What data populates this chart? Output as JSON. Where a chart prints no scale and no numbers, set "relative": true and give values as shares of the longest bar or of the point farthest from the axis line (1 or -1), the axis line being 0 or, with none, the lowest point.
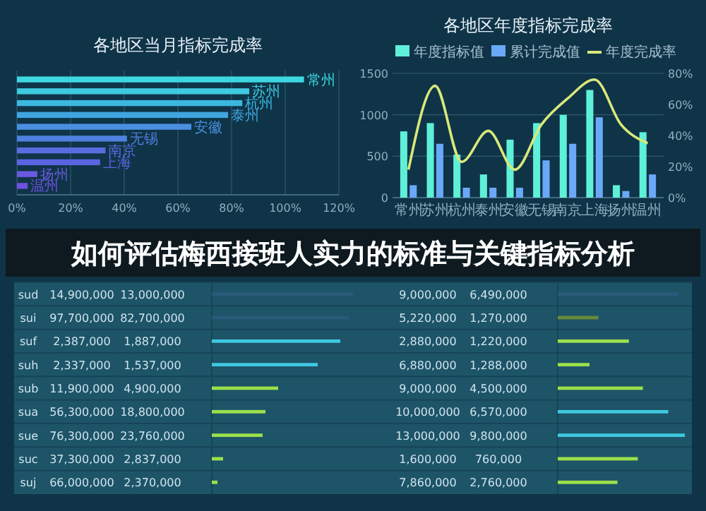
{
  "chart_data": [
    {
      "type": "bar",
      "orientation": "horizontal",
      "title": "各地区当月指标完成率",
      "categories": [
        "常州",
        "苏州",
        "杭州",
        "泰州",
        "安徽",
        "无锡",
        "南京",
        "上海",
        "扬州",
        "温州"
      ],
      "values": [
        107,
        86.6,
        84,
        78.7,
        65,
        41,
        33,
        31,
        7.6,
        4
      ],
      "colors": [
        "#3ed6e0",
        "#3ecbe0",
        "#3cb8e0",
        "#3fa5e0",
        "#4a8fe0",
        "#5080e0",
        "#5a6de0",
        "#5a64e0",
        "#6a5ae0",
        "#7050e0"
      ],
      "xlim": [
        0,
        120
      ],
      "xticks": [
        {
          "value": 0,
          "label": "0%"
        },
        {
          "value": 20,
          "label": "20%"
        },
        {
          "value": 40,
          "label": "40%"
        },
        {
          "value": 60,
          "label": "60%"
        },
        {
          "value": 80,
          "label": "80%"
        },
        {
          "value": 100,
          "label": "100%"
        },
        {
          "value": 120,
          "label": "120%"
        }
      ],
      "grid": "x"
    },
    {
      "type": "bar",
      "title": "各地区年度指标完成率",
      "categories": [
        "常州",
        "苏州",
        "杭州",
        "泰州",
        "安徽",
        "无锡",
        "南京",
        "上海",
        "扬州",
        "温州"
      ],
      "series": [
        {
          "name": "年度指标值",
          "color": "#5ef0d8",
          "values": [
            800,
            900,
            520,
            280,
            700,
            900,
            1000,
            1300,
            150,
            790
          ]
        },
        {
          "name": "累计完成值",
          "color": "#6aa8f8",
          "values": [
            150,
            650,
            120,
            120,
            120,
            450,
            650,
            970,
            80,
            280
          ]
        },
        {
          "name": "年度完成率",
          "type": "line",
          "axis": "y2",
          "color": "#d8e87a",
          "values": [
            18,
            72,
            23,
            43,
            18,
            47,
            64,
            76,
            47,
            35
          ]
        }
      ],
      "ylim": [
        0,
        1500
      ],
      "yticks": [
        0,
        500,
        1000,
        1500
      ],
      "y2lim": [
        0,
        80
      ],
      "y2ticks": [
        {
          "value": 0,
          "label": "0%"
        },
        {
          "value": 20,
          "label": "20%"
        },
        {
          "value": 40,
          "label": "40%"
        },
        {
          "value": 60,
          "label": "60%"
        },
        {
          "value": 80,
          "label": "80%"
        }
      ],
      "grid": "y",
      "legend": "top"
    },
    {
      "type": "other",
      "title": "如何评估梅西接班人实力的标准与关键指标分析"
    },
    {
      "type": "bar",
      "orientation": "horizontal",
      "relative": true,
      "categories": [
        "sud",
        "sui",
        "suf",
        "suh",
        "sub",
        "sua",
        "sue",
        "suc",
        "suj"
      ],
      "values": [
        1,
        0.97,
        0.91,
        0.75,
        0.47,
        0.38,
        0.36,
        0.08,
        0.04
      ],
      "colors": [
        "#2a5a7a",
        "#2a5a7a",
        "#3fc8e0",
        "#3fc8e0",
        "#9be04a",
        "#9be04a",
        "#9be04a",
        "#9be04a",
        "#9be04a"
      ],
      "annotations": [
        "14,900,000",
        "13,000,000",
        "97,700,000",
        "82,700,000",
        "2,387,000",
        "1,887,000",
        "2,337,000",
        "1,537,000",
        "11,900,000",
        "4,900,000",
        "56,300,000",
        "18,800,000",
        "76,300,000",
        "23,760,000",
        "37,300,000",
        "2,837,000",
        "66,000,000",
        "2,370,000"
      ]
    },
    {
      "type": "bar",
      "orientation": "horizontal",
      "relative": true,
      "categories": [
        null,
        null,
        null,
        null,
        null,
        null,
        null,
        null,
        null
      ],
      "values": [
        0.95,
        0.32,
        0.56,
        0.25,
        0.67,
        0.87,
        1,
        0.63,
        0.47
      ],
      "colors": [
        "#2a5a7a",
        "#6a8a3a",
        "#9be04a",
        "#9be04a",
        "#9be04a",
        "#3fc8e0",
        "#3fc8e0",
        "#9be04a",
        "#9be04a"
      ],
      "annotations": [
        "9,000,000",
        "6,490,000",
        "5,220,000",
        "1,270,000",
        "2,880,000",
        "1,220,000",
        "6,880,000",
        "1,288,000",
        "9,000,000",
        "4,500,000",
        "10,000,000",
        "6,570,000",
        "13,000,000",
        "9,800,000",
        "1,600,000",
        "760,000",
        "7,860,000",
        "2,760,000"
      ]
    }
  ]
}
